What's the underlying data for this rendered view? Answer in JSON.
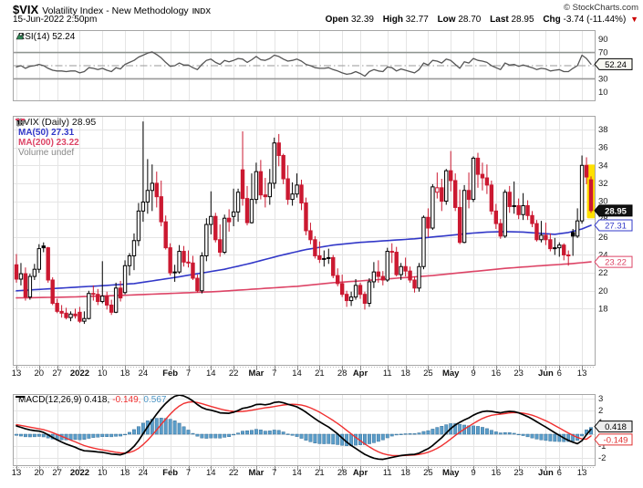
{
  "header": {
    "symbol": "$VIX",
    "title": "Volatility Index - New Methodology",
    "exchange": "INDX",
    "copyright": "© StockCharts.com",
    "datetime": "15-Jun-2022 2:50pm",
    "quote": {
      "open_label": "Open",
      "open": "32.39",
      "high_label": "High",
      "high": "32.77",
      "low_label": "Low",
      "low": "28.70",
      "last_label": "Last",
      "last": "28.95",
      "chg_label": "Chg",
      "chg": "-3.74 (-11.44%)",
      "direction": "down",
      "arrow": "▼"
    }
  },
  "rsi_panel": {
    "legend": "RSI(14) 52.24",
    "badge": "52.24",
    "y_ticks": [
      90,
      70,
      30,
      10
    ],
    "overbought": 70,
    "midline": 50,
    "oversold": 30
  },
  "main_panel": {
    "legend_symbol": "$VIX (Daily) 28.95",
    "legend_ma50": "MA(50) 27.31",
    "legend_ma200": "MA(200) 23.22",
    "legend_volume": "Volume undef",
    "badges": {
      "last": "28.95",
      "ma50": "27.31",
      "ma200": "23.22"
    },
    "y_ticks": [
      38,
      36,
      34,
      32,
      30,
      28,
      26,
      24,
      22,
      20,
      18
    ]
  },
  "macd_panel": {
    "legend_prefix": "MACD(12,26,9)",
    "macd_value": "0.418,",
    "signal_value": "-0.149,",
    "hist_value": "0.567",
    "badges": {
      "macd": "0.418",
      "signal": "-0.149"
    },
    "y_ticks": [
      3,
      2,
      1,
      -1,
      -2
    ]
  },
  "colors": {
    "up": "#000000",
    "down": "#cb1931",
    "ma50": "#3238c8",
    "ma200": "#dd4466",
    "macd": "#000000",
    "signal": "#f03030",
    "histogram": "#5b9dc9",
    "histogram_border": "#39729b",
    "rsi": "#555555",
    "rsi_overbought_fill": "#1d7a3e",
    "highlight": "#ffe000",
    "grid": "#e5e5e5",
    "panel_border": "#a6a6a6",
    "axis_text": "#1a1a1a",
    "badge_last_bg": "#111111",
    "change_arrow": "#cc0000"
  },
  "chart_data": {
    "type": "candlestick",
    "title": "$VIX Volatility Index - New Methodology (Daily)",
    "x_range_label": "13-Dec-2021 to 15-Jun-2022",
    "price_ylim": [
      11.8,
      39.4
    ],
    "rsi_ylim": [
      0,
      100
    ],
    "macd_ylim": [
      -2.6,
      3.4
    ],
    "x_ticks": [
      {
        "i": 0,
        "t": "13"
      },
      {
        "i": 5,
        "t": "20"
      },
      {
        "i": 9,
        "t": "27"
      },
      {
        "i": 14,
        "t": "2022",
        "b": true
      },
      {
        "i": 19,
        "t": "10"
      },
      {
        "i": 24,
        "t": "18"
      },
      {
        "i": 28,
        "t": "24"
      },
      {
        "i": 34,
        "t": "Feb",
        "b": true
      },
      {
        "i": 38,
        "t": "7"
      },
      {
        "i": 43,
        "t": "14"
      },
      {
        "i": 48,
        "t": "22"
      },
      {
        "i": 53,
        "t": "Mar",
        "b": true
      },
      {
        "i": 57,
        "t": "7"
      },
      {
        "i": 62,
        "t": "14"
      },
      {
        "i": 67,
        "t": "21"
      },
      {
        "i": 72,
        "t": "28"
      },
      {
        "i": 76,
        "t": "Apr",
        "b": true
      },
      {
        "i": 82,
        "t": "11"
      },
      {
        "i": 86,
        "t": "18"
      },
      {
        "i": 91,
        "t": "25"
      },
      {
        "i": 96,
        "t": "May",
        "b": true
      },
      {
        "i": 101,
        "t": "9"
      },
      {
        "i": 106,
        "t": "16"
      },
      {
        "i": 111,
        "t": "23"
      },
      {
        "i": 117,
        "t": "Jun",
        "b": true
      },
      {
        "i": 120,
        "t": "6"
      },
      {
        "i": 125,
        "t": "13"
      }
    ],
    "ohlc": [
      [
        22.9,
        24.1,
        20.9,
        21.3
      ],
      [
        21.3,
        23.1,
        20.6,
        21.9
      ],
      [
        21.9,
        22.6,
        18.9,
        19.3
      ],
      [
        19.3,
        21.9,
        19.0,
        21.6
      ],
      [
        21.6,
        23.0,
        21.2,
        22.4
      ],
      [
        22.4,
        25.2,
        22.0,
        24.7
      ],
      [
        25.0,
        25.4,
        24.3,
        24.8
      ],
      [
        24.8,
        24.9,
        20.9,
        21.2
      ],
      [
        21.2,
        21.5,
        18.4,
        18.6
      ],
      [
        18.6,
        19.1,
        17.5,
        17.7
      ],
      [
        17.7,
        18.4,
        17.0,
        17.5
      ],
      [
        17.5,
        18.1,
        16.8,
        17.0
      ],
      [
        17.0,
        17.7,
        16.6,
        17.4
      ],
      [
        17.4,
        18.0,
        16.9,
        17.2
      ],
      [
        17.6,
        18.2,
        16.4,
        16.6
      ],
      [
        16.6,
        17.7,
        16.3,
        16.9
      ],
      [
        16.9,
        20.0,
        16.8,
        19.7
      ],
      [
        19.7,
        20.6,
        18.9,
        19.6
      ],
      [
        19.6,
        20.2,
        18.4,
        18.8
      ],
      [
        18.8,
        23.3,
        18.6,
        19.4
      ],
      [
        19.4,
        19.9,
        17.9,
        18.4
      ],
      [
        18.4,
        19.0,
        17.3,
        17.6
      ],
      [
        17.6,
        20.9,
        17.5,
        20.3
      ],
      [
        20.3,
        21.1,
        18.8,
        19.2
      ],
      [
        19.8,
        23.4,
        19.6,
        22.8
      ],
      [
        22.8,
        24.2,
        21.7,
        23.9
      ],
      [
        23.9,
        26.4,
        22.3,
        25.6
      ],
      [
        25.6,
        29.8,
        25.0,
        28.9
      ],
      [
        28.9,
        38.9,
        27.7,
        29.9
      ],
      [
        29.9,
        34.7,
        28.6,
        31.2
      ],
      [
        31.2,
        34.1,
        28.9,
        32.0
      ],
      [
        32.0,
        33.3,
        29.3,
        30.5
      ],
      [
        30.5,
        32.3,
        27.2,
        27.7
      ],
      [
        27.7,
        28.4,
        24.6,
        24.8
      ],
      [
        24.8,
        25.3,
        21.7,
        22.0
      ],
      [
        22.0,
        22.9,
        21.0,
        22.1
      ],
      [
        22.1,
        25.1,
        21.9,
        24.4
      ],
      [
        24.4,
        25.0,
        22.7,
        23.2
      ],
      [
        23.2,
        24.5,
        22.6,
        23.1
      ],
      [
        23.1,
        23.9,
        21.2,
        21.4
      ],
      [
        21.4,
        21.8,
        19.8,
        20.0
      ],
      [
        20.0,
        24.3,
        19.7,
        23.9
      ],
      [
        23.9,
        28.1,
        23.3,
        27.4
      ],
      [
        27.4,
        31.1,
        26.3,
        28.3
      ],
      [
        28.3,
        28.7,
        25.4,
        25.7
      ],
      [
        25.7,
        27.4,
        23.8,
        24.3
      ],
      [
        24.3,
        28.5,
        24.1,
        28.1
      ],
      [
        28.1,
        29.1,
        26.6,
        27.7
      ],
      [
        28.3,
        31.4,
        27.2,
        28.8
      ],
      [
        28.8,
        31.4,
        27.7,
        31.0
      ],
      [
        33.5,
        37.8,
        29.5,
        30.3
      ],
      [
        30.3,
        31.7,
        27.3,
        27.6
      ],
      [
        27.6,
        33.1,
        27.5,
        30.2
      ],
      [
        30.2,
        34.3,
        29.7,
        33.3
      ],
      [
        33.3,
        34.6,
        30.2,
        30.7
      ],
      [
        30.7,
        32.6,
        29.3,
        30.5
      ],
      [
        30.5,
        33.6,
        29.6,
        32.0
      ],
      [
        32.0,
        37.1,
        31.4,
        36.5
      ],
      [
        36.5,
        37.5,
        33.9,
        35.1
      ],
      [
        35.1,
        35.3,
        31.9,
        32.5
      ],
      [
        32.5,
        34.0,
        29.6,
        30.2
      ],
      [
        30.2,
        32.1,
        29.5,
        30.8
      ],
      [
        30.8,
        33.1,
        30.4,
        31.8
      ],
      [
        31.8,
        32.4,
        29.0,
        29.8
      ],
      [
        29.8,
        30.4,
        26.2,
        26.7
      ],
      [
        26.7,
        27.6,
        25.2,
        25.7
      ],
      [
        25.7,
        26.1,
        23.6,
        23.9
      ],
      [
        23.9,
        25.5,
        23.1,
        23.5
      ],
      [
        23.5,
        24.5,
        22.7,
        23.6
      ],
      [
        23.6,
        24.7,
        23.0,
        23.7
      ],
      [
        23.7,
        24.0,
        21.4,
        21.7
      ],
      [
        21.7,
        22.5,
        20.5,
        20.8
      ],
      [
        20.8,
        21.8,
        19.3,
        19.6
      ],
      [
        19.6,
        20.0,
        18.2,
        18.9
      ],
      [
        18.9,
        19.9,
        18.3,
        19.3
      ],
      [
        19.3,
        21.3,
        19.0,
        20.6
      ],
      [
        20.6,
        20.9,
        19.1,
        19.6
      ],
      [
        19.6,
        19.9,
        17.9,
        18.6
      ],
      [
        18.6,
        21.4,
        18.2,
        21.0
      ],
      [
        21.0,
        23.2,
        20.3,
        22.1
      ],
      [
        22.1,
        23.4,
        20.9,
        21.6
      ],
      [
        21.6,
        22.2,
        20.6,
        21.2
      ],
      [
        21.2,
        24.8,
        21.0,
        24.4
      ],
      [
        24.4,
        25.3,
        23.1,
        24.3
      ],
      [
        24.3,
        24.9,
        21.6,
        21.8
      ],
      [
        21.8,
        23.1,
        21.2,
        22.7
      ],
      [
        22.7,
        23.7,
        21.6,
        22.2
      ],
      [
        22.2,
        22.7,
        20.9,
        21.2
      ],
      [
        21.2,
        21.6,
        19.8,
        20.3
      ],
      [
        20.3,
        23.1,
        19.9,
        22.7
      ],
      [
        22.7,
        28.4,
        22.4,
        28.2
      ],
      [
        28.2,
        29.2,
        26.0,
        27.0
      ],
      [
        27.0,
        31.9,
        26.8,
        31.6
      ],
      [
        31.0,
        33.2,
        30.3,
        31.5
      ],
      [
        31.5,
        32.5,
        28.9,
        30.0
      ],
      [
        30.0,
        33.6,
        29.6,
        33.4
      ],
      [
        33.4,
        35.6,
        31.1,
        32.3
      ],
      [
        32.3,
        33.1,
        28.9,
        29.3
      ],
      [
        29.3,
        31.3,
        25.2,
        25.4
      ],
      [
        25.4,
        31.8,
        25.3,
        31.2
      ],
      [
        31.2,
        33.2,
        29.2,
        30.2
      ],
      [
        30.2,
        35.0,
        29.9,
        34.8
      ],
      [
        34.8,
        35.4,
        31.5,
        33.0
      ],
      [
        33.0,
        34.3,
        31.2,
        32.6
      ],
      [
        32.6,
        34.1,
        30.8,
        31.8
      ],
      [
        31.8,
        32.3,
        28.5,
        28.9
      ],
      [
        28.9,
        29.7,
        26.9,
        27.5
      ],
      [
        27.5,
        28.0,
        25.8,
        26.1
      ],
      [
        26.1,
        31.3,
        25.9,
        31.0
      ],
      [
        31.0,
        31.7,
        28.7,
        29.4
      ],
      [
        29.4,
        32.2,
        28.6,
        29.5
      ],
      [
        29.5,
        30.3,
        28.0,
        28.5
      ],
      [
        28.5,
        30.9,
        27.9,
        29.5
      ],
      [
        29.5,
        30.1,
        27.9,
        28.4
      ],
      [
        28.4,
        28.9,
        27.1,
        27.5
      ],
      [
        27.5,
        27.9,
        25.5,
        25.7
      ],
      [
        25.7,
        27.8,
        25.4,
        26.2
      ],
      [
        26.2,
        27.6,
        25.1,
        25.7
      ],
      [
        25.7,
        26.4,
        24.4,
        24.7
      ],
      [
        24.7,
        25.9,
        24.0,
        24.8
      ],
      [
        24.8,
        25.4,
        23.8,
        25.1
      ],
      [
        25.1,
        25.3,
        23.4,
        24.0
      ],
      [
        24.0,
        24.5,
        22.8,
        23.9
      ],
      [
        26.5,
        26.9,
        23.9,
        26.1
      ],
      [
        26.1,
        29.2,
        25.9,
        27.8
      ],
      [
        27.8,
        35.1,
        27.5,
        34.0
      ],
      [
        34.0,
        34.9,
        31.9,
        32.7
      ],
      [
        32.39,
        32.77,
        28.7,
        28.95
      ]
    ],
    "highlight_last_candle": true,
    "rsi": [
      48,
      50,
      46,
      49,
      50,
      52,
      50,
      46,
      43,
      42,
      42,
      41,
      42,
      42,
      39,
      41,
      47,
      46,
      44,
      46,
      43,
      41,
      47,
      45,
      52,
      55,
      58,
      63,
      66,
      69,
      71,
      67,
      62,
      55,
      49,
      50,
      54,
      51,
      51,
      47,
      44,
      52,
      58,
      60,
      55,
      52,
      58,
      56,
      58,
      61,
      60,
      55,
      59,
      64,
      59,
      58,
      61,
      66,
      64,
      60,
      57,
      58,
      60,
      57,
      52,
      50,
      47,
      46,
      46,
      47,
      44,
      42,
      39,
      37,
      38,
      41,
      38,
      34,
      41,
      44,
      42,
      41,
      48,
      47,
      42,
      45,
      43,
      41,
      39,
      44,
      54,
      51,
      58,
      57,
      54,
      60,
      58,
      52,
      46,
      56,
      54,
      61,
      58,
      57,
      55,
      50,
      47,
      44,
      54,
      51,
      52,
      49,
      51,
      49,
      47,
      44,
      46,
      45,
      42,
      43,
      44,
      41,
      41,
      46,
      50,
      66,
      61,
      52.24
    ],
    "macd": [
      0.7,
      0.58,
      0.45,
      0.36,
      0.3,
      0.26,
      0.15,
      -0.05,
      -0.28,
      -0.48,
      -0.66,
      -0.83,
      -0.97,
      -1.1,
      -1.28,
      -1.4,
      -1.42,
      -1.45,
      -1.5,
      -1.53,
      -1.6,
      -1.68,
      -1.7,
      -1.74,
      -1.62,
      -1.38,
      -1.02,
      -0.55,
      0.05,
      0.62,
      1.18,
      1.7,
      2.18,
      2.6,
      2.95,
      3.2,
      3.3,
      3.22,
      3.05,
      2.8,
      2.5,
      2.25,
      2.1,
      2.02,
      1.92,
      1.8,
      1.78,
      1.76,
      1.85,
      2.0,
      2.18,
      2.25,
      2.35,
      2.5,
      2.52,
      2.48,
      2.55,
      2.68,
      2.72,
      2.65,
      2.52,
      2.42,
      2.3,
      2.1,
      1.85,
      1.58,
      1.3,
      1.05,
      0.82,
      0.6,
      0.32,
      0.02,
      -0.32,
      -0.66,
      -0.95,
      -1.2,
      -1.45,
      -1.7,
      -1.88,
      -2.02,
      -2.1,
      -2.12,
      -2.05,
      -1.95,
      -1.88,
      -1.8,
      -1.75,
      -1.72,
      -1.7,
      -1.6,
      -1.4,
      -1.22,
      -0.95,
      -0.62,
      -0.3,
      0.1,
      0.48,
      0.78,
      1.0,
      1.2,
      1.38,
      1.6,
      1.78,
      1.9,
      1.95,
      1.92,
      1.85,
      1.8,
      1.88,
      1.92,
      1.9,
      1.8,
      1.65,
      1.48,
      1.28,
      1.05,
      0.82,
      0.6,
      0.36,
      0.12,
      -0.1,
      -0.32,
      -0.52,
      -0.68,
      -0.8,
      -0.55,
      -0.05,
      0.418
    ],
    "macd_signal": [
      0.8,
      0.74,
      0.67,
      0.59,
      0.52,
      0.45,
      0.38,
      0.27,
      0.13,
      -0.02,
      -0.18,
      -0.34,
      -0.5,
      -0.65,
      -0.81,
      -0.96,
      -1.07,
      -1.17,
      -1.25,
      -1.32,
      -1.39,
      -1.46,
      -1.52,
      -1.58,
      -1.59,
      -1.54,
      -1.41,
      -1.19,
      -0.88,
      -0.51,
      -0.09,
      0.36,
      0.82,
      1.27,
      1.69,
      2.07,
      2.38,
      2.59,
      2.7,
      2.73,
      2.67,
      2.57,
      2.45,
      2.34,
      2.24,
      2.13,
      2.04,
      1.97,
      1.92,
      1.9,
      1.92,
      1.96,
      2.02,
      2.09,
      2.16,
      2.22,
      2.27,
      2.33,
      2.4,
      2.46,
      2.5,
      2.52,
      2.5,
      2.45,
      2.36,
      2.22,
      2.05,
      1.85,
      1.63,
      1.4,
      1.16,
      0.9,
      0.62,
      0.32,
      0.02,
      -0.27,
      -0.55,
      -0.82,
      -1.07,
      -1.3,
      -1.49,
      -1.64,
      -1.74,
      -1.79,
      -1.81,
      -1.81,
      -1.79,
      -1.77,
      -1.75,
      -1.71,
      -1.63,
      -1.52,
      -1.38,
      -1.19,
      -0.97,
      -0.7,
      -0.41,
      -0.11,
      0.17,
      0.43,
      0.67,
      0.9,
      1.12,
      1.32,
      1.48,
      1.59,
      1.65,
      1.69,
      1.74,
      1.79,
      1.82,
      1.81,
      1.77,
      1.7,
      1.6,
      1.46,
      1.3,
      1.13,
      0.94,
      0.73,
      0.52,
      0.31,
      0.1,
      -0.1,
      -0.28,
      -0.4,
      -0.42,
      -0.149
    ],
    "ma50_keypoints": [
      [
        0,
        20.0
      ],
      [
        10,
        20.3
      ],
      [
        20,
        20.6
      ],
      [
        26,
        20.8
      ],
      [
        30,
        21.1
      ],
      [
        34,
        21.4
      ],
      [
        40,
        21.9
      ],
      [
        46,
        22.4
      ],
      [
        52,
        23.1
      ],
      [
        58,
        23.9
      ],
      [
        64,
        24.6
      ],
      [
        70,
        25.1
      ],
      [
        76,
        25.4
      ],
      [
        82,
        25.6
      ],
      [
        88,
        25.8
      ],
      [
        94,
        26.1
      ],
      [
        100,
        26.4
      ],
      [
        104,
        26.55
      ],
      [
        108,
        26.6
      ],
      [
        112,
        26.55
      ],
      [
        116,
        26.4
      ],
      [
        119,
        26.3
      ],
      [
        122,
        26.5
      ],
      [
        125,
        26.9
      ],
      [
        127,
        27.31
      ]
    ],
    "ma200_keypoints": [
      [
        0,
        19.2
      ],
      [
        12,
        19.3
      ],
      [
        24,
        19.5
      ],
      [
        34,
        19.7
      ],
      [
        44,
        19.9
      ],
      [
        53,
        20.2
      ],
      [
        62,
        20.5
      ],
      [
        70,
        20.9
      ],
      [
        76,
        21.1
      ],
      [
        84,
        21.4
      ],
      [
        92,
        21.7
      ],
      [
        100,
        22.1
      ],
      [
        108,
        22.5
      ],
      [
        116,
        22.8
      ],
      [
        122,
        23.0
      ],
      [
        127,
        23.22
      ]
    ]
  }
}
